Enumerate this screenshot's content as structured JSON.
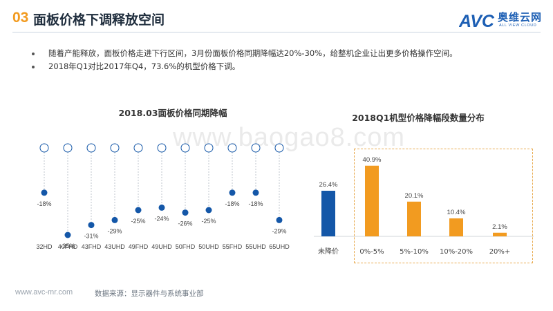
{
  "header": {
    "section_number": "03",
    "title": "面板价格下调释放空间",
    "logo_text": "AVC",
    "logo_cn": "奥维云网",
    "logo_en": "ALL VIEW CLOUD",
    "accent_color": "#f29b20",
    "brand_color": "#1d5fb4"
  },
  "bullets": [
    "随着产能释放，面板价格走进下行区间，3月份面板价格同期降幅达20%-30%，给整机企业让出更多价格操作空间。",
    "2018年Q1对比2017年Q4，73.6%的机型价格下调。"
  ],
  "watermark": "www.baogao8.com",
  "footer": {
    "url": "www.avc-mr.com",
    "source": "数据来源：显示器件与系统事业部"
  },
  "chart_data": [
    {
      "type": "scatter",
      "title": "2018.03面板价格同期降幅",
      "categories": [
        "32HD",
        "40FHD",
        "43FHD",
        "43UHD",
        "49FHD",
        "49UHD",
        "50FHD",
        "50UHD",
        "55FHD",
        "55UHD",
        "65UHD"
      ],
      "values": [
        -18,
        -35,
        -31,
        -29,
        -25,
        -24,
        -26,
        -25,
        -18,
        -18,
        -29
      ],
      "value_suffix": "%",
      "ylim": [
        -40,
        0
      ],
      "marker_color": "#1457a8",
      "baseline_marker": "hollow-circle"
    },
    {
      "type": "bar",
      "title": "2018Q1机型价格降幅段数量分布",
      "categories": [
        "未降价",
        "0%-5%",
        "5%-10%",
        "10%-20%",
        "20%+"
      ],
      "values": [
        26.4,
        40.9,
        20.1,
        10.4,
        2.1
      ],
      "value_suffix": "%",
      "colors": [
        "#1457a8",
        "#f29b20",
        "#f29b20",
        "#f29b20",
        "#f29b20"
      ],
      "ylim": [
        0,
        45
      ],
      "highlight_box": [
        "0%-5%",
        "5%-10%",
        "10%-20%",
        "20%+"
      ]
    }
  ]
}
